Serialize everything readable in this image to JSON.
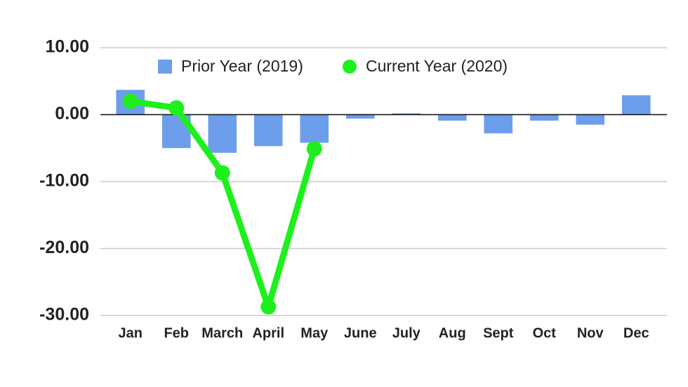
{
  "chart_data": {
    "type": "bar",
    "categories": [
      "Jan",
      "Feb",
      "March",
      "April",
      "May",
      "June",
      "July",
      "Aug",
      "Sept",
      "Oct",
      "Nov",
      "Dec"
    ],
    "series": [
      {
        "name": "Prior Year (2019)",
        "type": "bar",
        "color": "#6d9eeb",
        "values": [
          3.7,
          -5.0,
          -5.7,
          -4.7,
          -4.2,
          -0.6,
          0.2,
          -0.9,
          -2.8,
          -0.9,
          -1.5,
          2.9
        ]
      },
      {
        "name": "Current Year (2020)",
        "type": "line",
        "color": "#1ef01e",
        "values": [
          2.0,
          1.0,
          -8.7,
          -28.7,
          -5.1,
          null,
          null,
          null,
          null,
          null,
          null,
          null
        ]
      }
    ],
    "ylim": [
      -30,
      10
    ],
    "yticks": [
      {
        "value": -30,
        "label": "-30.00"
      },
      {
        "value": -20,
        "label": "-20.00"
      },
      {
        "value": -10,
        "label": "-10.00"
      },
      {
        "value": 0,
        "label": "0.00"
      },
      {
        "value": 10,
        "label": "10.00"
      }
    ],
    "grid": true,
    "legend": "top"
  }
}
